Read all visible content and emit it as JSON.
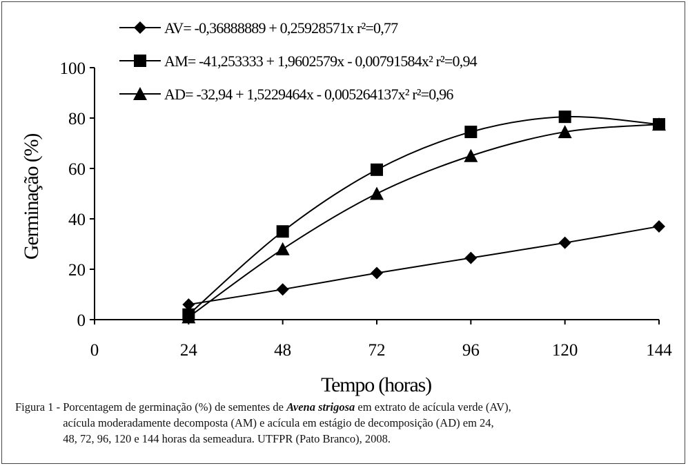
{
  "chart_data": {
    "type": "line",
    "xlabel": "Tempo (horas)",
    "ylabel": "Germinação (%)",
    "xlim": [
      0,
      144
    ],
    "ylim": [
      0,
      100
    ],
    "x_ticks": [
      "0",
      "24",
      "48",
      "72",
      "96",
      "120",
      "144"
    ],
    "y_ticks": [
      "0",
      "20",
      "40",
      "60",
      "80",
      "100"
    ],
    "grid": false,
    "legend_position": "top",
    "x": [
      24,
      48,
      72,
      96,
      120,
      144
    ],
    "series": [
      {
        "name": "AV",
        "marker": "diamond",
        "color": "#000000",
        "values": [
          6,
          12,
          18.5,
          24.5,
          30.5,
          37
        ],
        "equation_label": "AV= -0,36888889 + 0,25928571x   r²=0,77",
        "model": {
          "a": -0.36888889,
          "b": 0.25928571,
          "c": 0
        }
      },
      {
        "name": "AM",
        "marker": "square",
        "color": "#000000",
        "values": [
          2,
          35,
          59.5,
          74.5,
          80.5,
          77.5
        ],
        "equation_label": "AM= -41,253333 + 1,9602579x - 0,00791584x²   r²=0,94",
        "model": {
          "a": -41.253333,
          "b": 1.9602579,
          "c": -0.00791584
        }
      },
      {
        "name": "AD",
        "marker": "triangle",
        "color": "#000000",
        "values": [
          1,
          28,
          50,
          65,
          74.5,
          77.5
        ],
        "equation_label": "AD= -32,94 + 1,5229464x - 0,005264137x²   r²=0,96",
        "model": {
          "a": -32.94,
          "b": 1.5229464,
          "c": -0.005264137
        }
      }
    ]
  },
  "caption": {
    "prefix": "Figura 1 - ",
    "line1_before": "Porcentagem de germinação (%) de sementes de ",
    "species": "Avena strigosa",
    "line1_after": " em extrato de acícula verde (AV),",
    "line2": "acícula moderadamente decomposta (AM) e acícula em estágio de decomposição (AD) em 24,",
    "line3": "48, 72, 96, 120 e 144 horas da semeadura. UTFPR (Pato Branco), 2008."
  }
}
